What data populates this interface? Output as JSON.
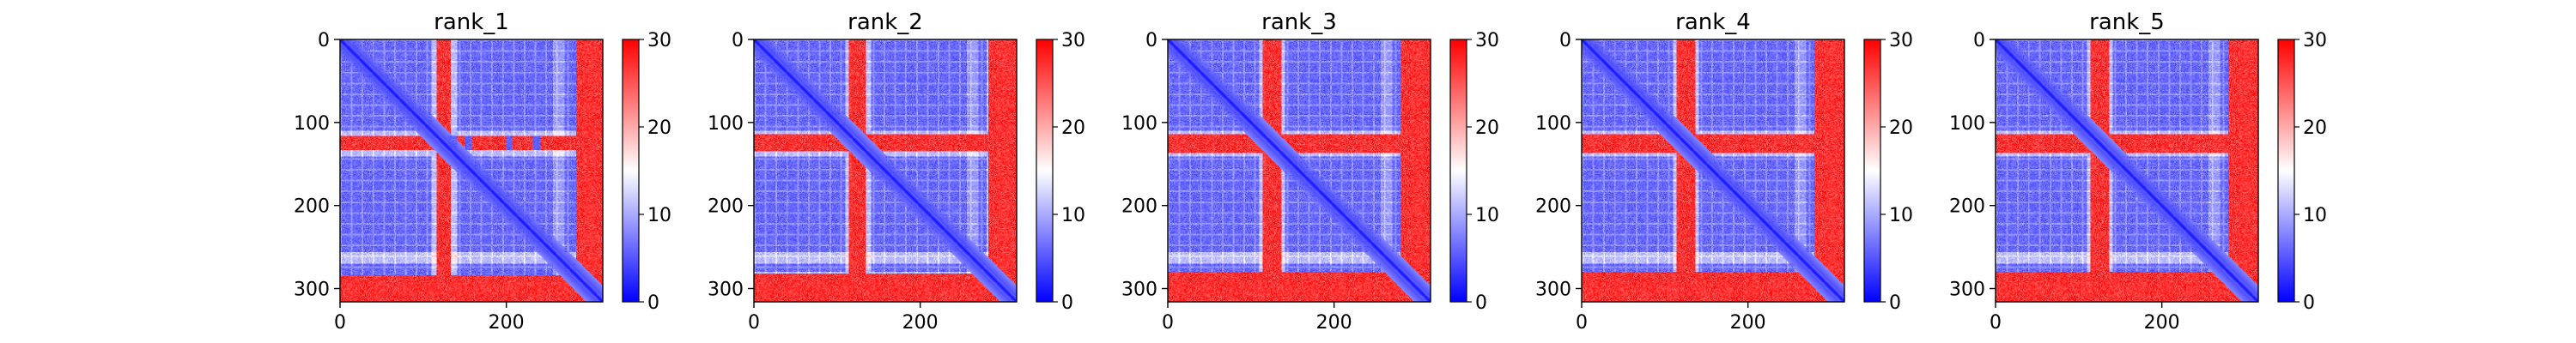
{
  "chart_data": [
    {
      "type": "heatmap",
      "title": "rank_1",
      "x_range": [
        0,
        316
      ],
      "y_range": [
        316,
        0
      ],
      "x_ticks": [
        0,
        200
      ],
      "y_ticks": [
        0,
        100,
        200,
        300
      ],
      "colorbar": {
        "colormap": "bwr",
        "range": [
          0,
          30
        ],
        "ticks": [
          0,
          10,
          20,
          30
        ]
      },
      "grid": false,
      "features": {
        "bands": [
          [
            116,
            132
          ],
          [
            284,
            316
          ]
        ],
        "blue_stripes": [
          [
            116,
            132
          ]
        ],
        "light_columns": [
          [
            110,
            140
          ],
          [
            290,
            316
          ]
        ]
      }
    },
    {
      "type": "heatmap",
      "title": "rank_2",
      "x_range": [
        0,
        316
      ],
      "y_range": [
        316,
        0
      ],
      "x_ticks": [
        0,
        200
      ],
      "y_ticks": [
        0,
        100,
        200,
        300
      ],
      "colorbar": {
        "colormap": "bwr",
        "range": [
          0,
          30
        ],
        "ticks": [
          0,
          10,
          20,
          30
        ]
      },
      "grid": false,
      "features": {
        "bands": [
          [
            114,
            134
          ],
          [
            282,
            316
          ]
        ],
        "blue_stripes": [],
        "light_columns": [
          [
            110,
            140
          ],
          [
            280,
            316
          ]
        ]
      }
    },
    {
      "type": "heatmap",
      "title": "rank_3",
      "x_range": [
        0,
        316
      ],
      "y_range": [
        316,
        0
      ],
      "x_ticks": [
        0,
        200
      ],
      "y_ticks": [
        0,
        100,
        200,
        300
      ],
      "colorbar": {
        "colormap": "bwr",
        "range": [
          0,
          30
        ],
        "ticks": [
          0,
          10,
          20,
          30
        ]
      },
      "grid": false,
      "features": {
        "bands": [
          [
            114,
            136
          ],
          [
            280,
            316
          ]
        ],
        "blue_stripes": [],
        "light_columns": [
          [
            110,
            140
          ],
          [
            280,
            316
          ]
        ]
      }
    },
    {
      "type": "heatmap",
      "title": "rank_4",
      "x_range": [
        0,
        316
      ],
      "y_range": [
        316,
        0
      ],
      "x_ticks": [
        0,
        200
      ],
      "y_ticks": [
        0,
        100,
        200,
        300
      ],
      "colorbar": {
        "colormap": "bwr",
        "range": [
          0,
          30
        ],
        "ticks": [
          0,
          10,
          20,
          30
        ]
      },
      "grid": false,
      "features": {
        "bands": [
          [
            114,
            136
          ],
          [
            280,
            316
          ]
        ],
        "blue_stripes": [],
        "light_columns": [
          [
            110,
            140
          ],
          [
            280,
            316
          ]
        ]
      }
    },
    {
      "type": "heatmap",
      "title": "rank_5",
      "x_range": [
        0,
        316
      ],
      "y_range": [
        316,
        0
      ],
      "x_ticks": [
        0,
        200
      ],
      "y_ticks": [
        0,
        100,
        200,
        300
      ],
      "colorbar": {
        "colormap": "bwr",
        "range": [
          0,
          30
        ],
        "ticks": [
          0,
          10,
          20,
          30
        ]
      },
      "grid": false,
      "features": {
        "bands": [
          [
            114,
            136
          ],
          [
            280,
            316
          ]
        ],
        "blue_stripes": [],
        "light_columns": [
          [
            110,
            140
          ],
          [
            280,
            316
          ]
        ]
      }
    }
  ]
}
